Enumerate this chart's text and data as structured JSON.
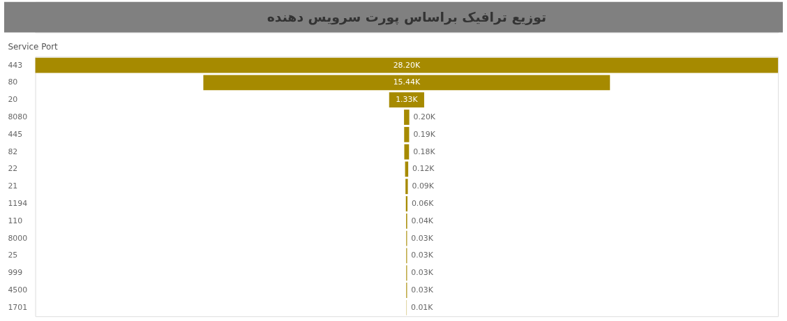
{
  "chart_data": {
    "type": "other",
    "title": "توزیع ترافیک براساس پورت سرویس دهنده",
    "ylabel": "Service Port",
    "categories": [
      "443",
      "80",
      "20",
      "8080",
      "445",
      "82",
      "22",
      "21",
      "1194",
      "110",
      "8000",
      "25",
      "999",
      "4500",
      "1701"
    ],
    "values": [
      28.2,
      15.44,
      1.33,
      0.2,
      0.19,
      0.18,
      0.12,
      0.09,
      0.06,
      0.04,
      0.03,
      0.03,
      0.03,
      0.03,
      0.01
    ],
    "value_labels": [
      "28.20K",
      "15.44K",
      "1.33K",
      "0.20K",
      "0.19K",
      "0.18K",
      "0.12K",
      "0.09K",
      "0.06K",
      "0.04K",
      "0.03K",
      "0.03K",
      "0.03K",
      "0.03K",
      "0.01K"
    ],
    "color": "#a68a00"
  }
}
